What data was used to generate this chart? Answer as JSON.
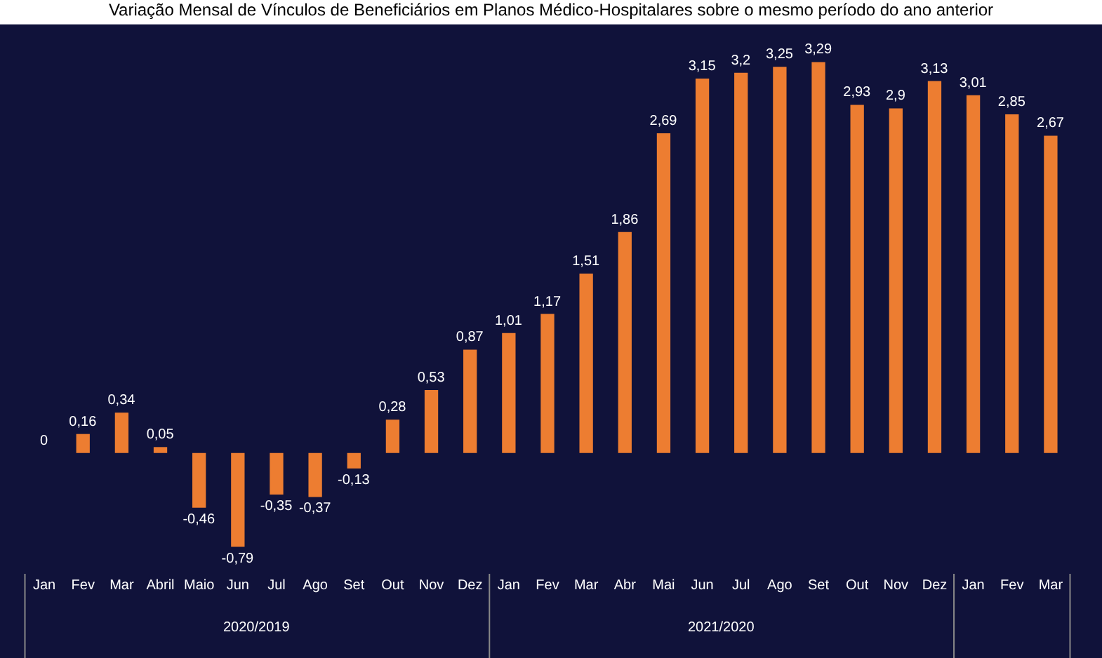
{
  "chart_data": {
    "type": "bar",
    "title": "Variação Mensal de Vínculos de Beneficiários em Planos Médico-Hospitalares sobre o mesmo período do ano anterior",
    "categories": [
      "Jan",
      "Fev",
      "Mar",
      "Abril",
      "Maio",
      "Jun",
      "Jul",
      "Ago",
      "Set",
      "Out",
      "Nov",
      "Dez",
      "Jan",
      "Fev",
      "Mar",
      "Abr",
      "Mai",
      "Jun",
      "Jul",
      "Ago",
      "Set",
      "Out",
      "Nov",
      "Dez",
      "Jan",
      "Fev",
      "Mar"
    ],
    "values": [
      0,
      0.16,
      0.34,
      0.05,
      -0.46,
      -0.79,
      -0.35,
      -0.37,
      -0.13,
      0.28,
      0.53,
      0.87,
      1.01,
      1.17,
      1.51,
      1.86,
      2.69,
      3.15,
      3.2,
      3.25,
      3.29,
      2.93,
      2.9,
      3.13,
      3.01,
      2.85,
      2.67
    ],
    "value_labels": [
      "0",
      "0,16",
      "0,34",
      "0,05",
      "-0,46",
      "-0,79",
      "-0,35",
      "-0,37",
      "-0,13",
      "0,28",
      "0,53",
      "0,87",
      "1,01",
      "1,17",
      "1,51",
      "1,86",
      "2,69",
      "3,15",
      "3,2",
      "3,25",
      "3,29",
      "2,93",
      "2,9",
      "3,13",
      "3,01",
      "2,85",
      "2,67"
    ],
    "color": "#ed7d31",
    "annotations": [
      "2020/2019",
      "2021/2020"
    ],
    "grid": false,
    "legend": false
  }
}
